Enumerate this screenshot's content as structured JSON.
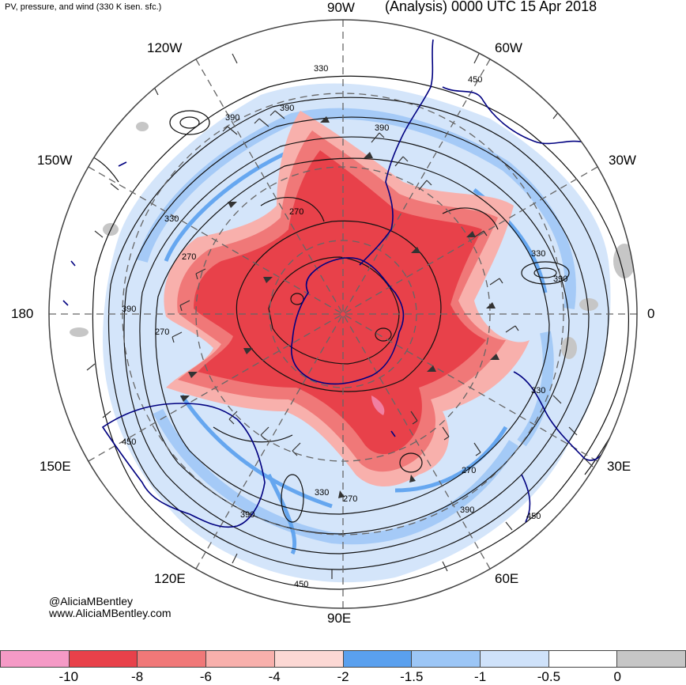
{
  "header": {
    "left": "PV, pressure, and wind (330 K isen. sfc.)",
    "right": "(Analysis) 0000 UTC 15 Apr 2018"
  },
  "longitudes": {
    "lon_90w": "90W",
    "lon_60w": "60W",
    "lon_120w": "120W",
    "lon_150w": "150W",
    "lon_30w": "30W",
    "lon_180": "180",
    "lon_0": "0",
    "lon_150e": "150E",
    "lon_30e": "30E",
    "lon_120e": "120E",
    "lon_60e": "60E",
    "lon_90e": "90E"
  },
  "contour_labels": [
    "330",
    "450",
    "390",
    "390",
    "390",
    "330",
    "270",
    "330",
    "270",
    "390",
    "390",
    "270",
    "330",
    "450",
    "270",
    "330",
    "390",
    "450",
    "390",
    "450",
    "270"
  ],
  "credit": {
    "handle": "@AliciaMBentley",
    "site": "www.AliciaMBentley.com"
  },
  "colorbar": {
    "colors": [
      "#f59ac6",
      "#e8414a",
      "#f07878",
      "#f8b0ac",
      "#fcd8d4",
      "#5aa0ee",
      "#9cc6f6",
      "#cfe2fa",
      "#ffffff",
      "#c6c6c6"
    ],
    "ticks": [
      "-10",
      "-8",
      "-6",
      "-4",
      "-2",
      "-1.5",
      "-1",
      "-0.5",
      "0"
    ]
  },
  "colors": {
    "pv_strong": "#e8414a",
    "pv_mid": "#f07878",
    "pv_weak": "#f8b0ac",
    "pv_blue": "#5aa0ee",
    "pv_lightblue": "#9cc6f6",
    "coast": "#000080"
  }
}
